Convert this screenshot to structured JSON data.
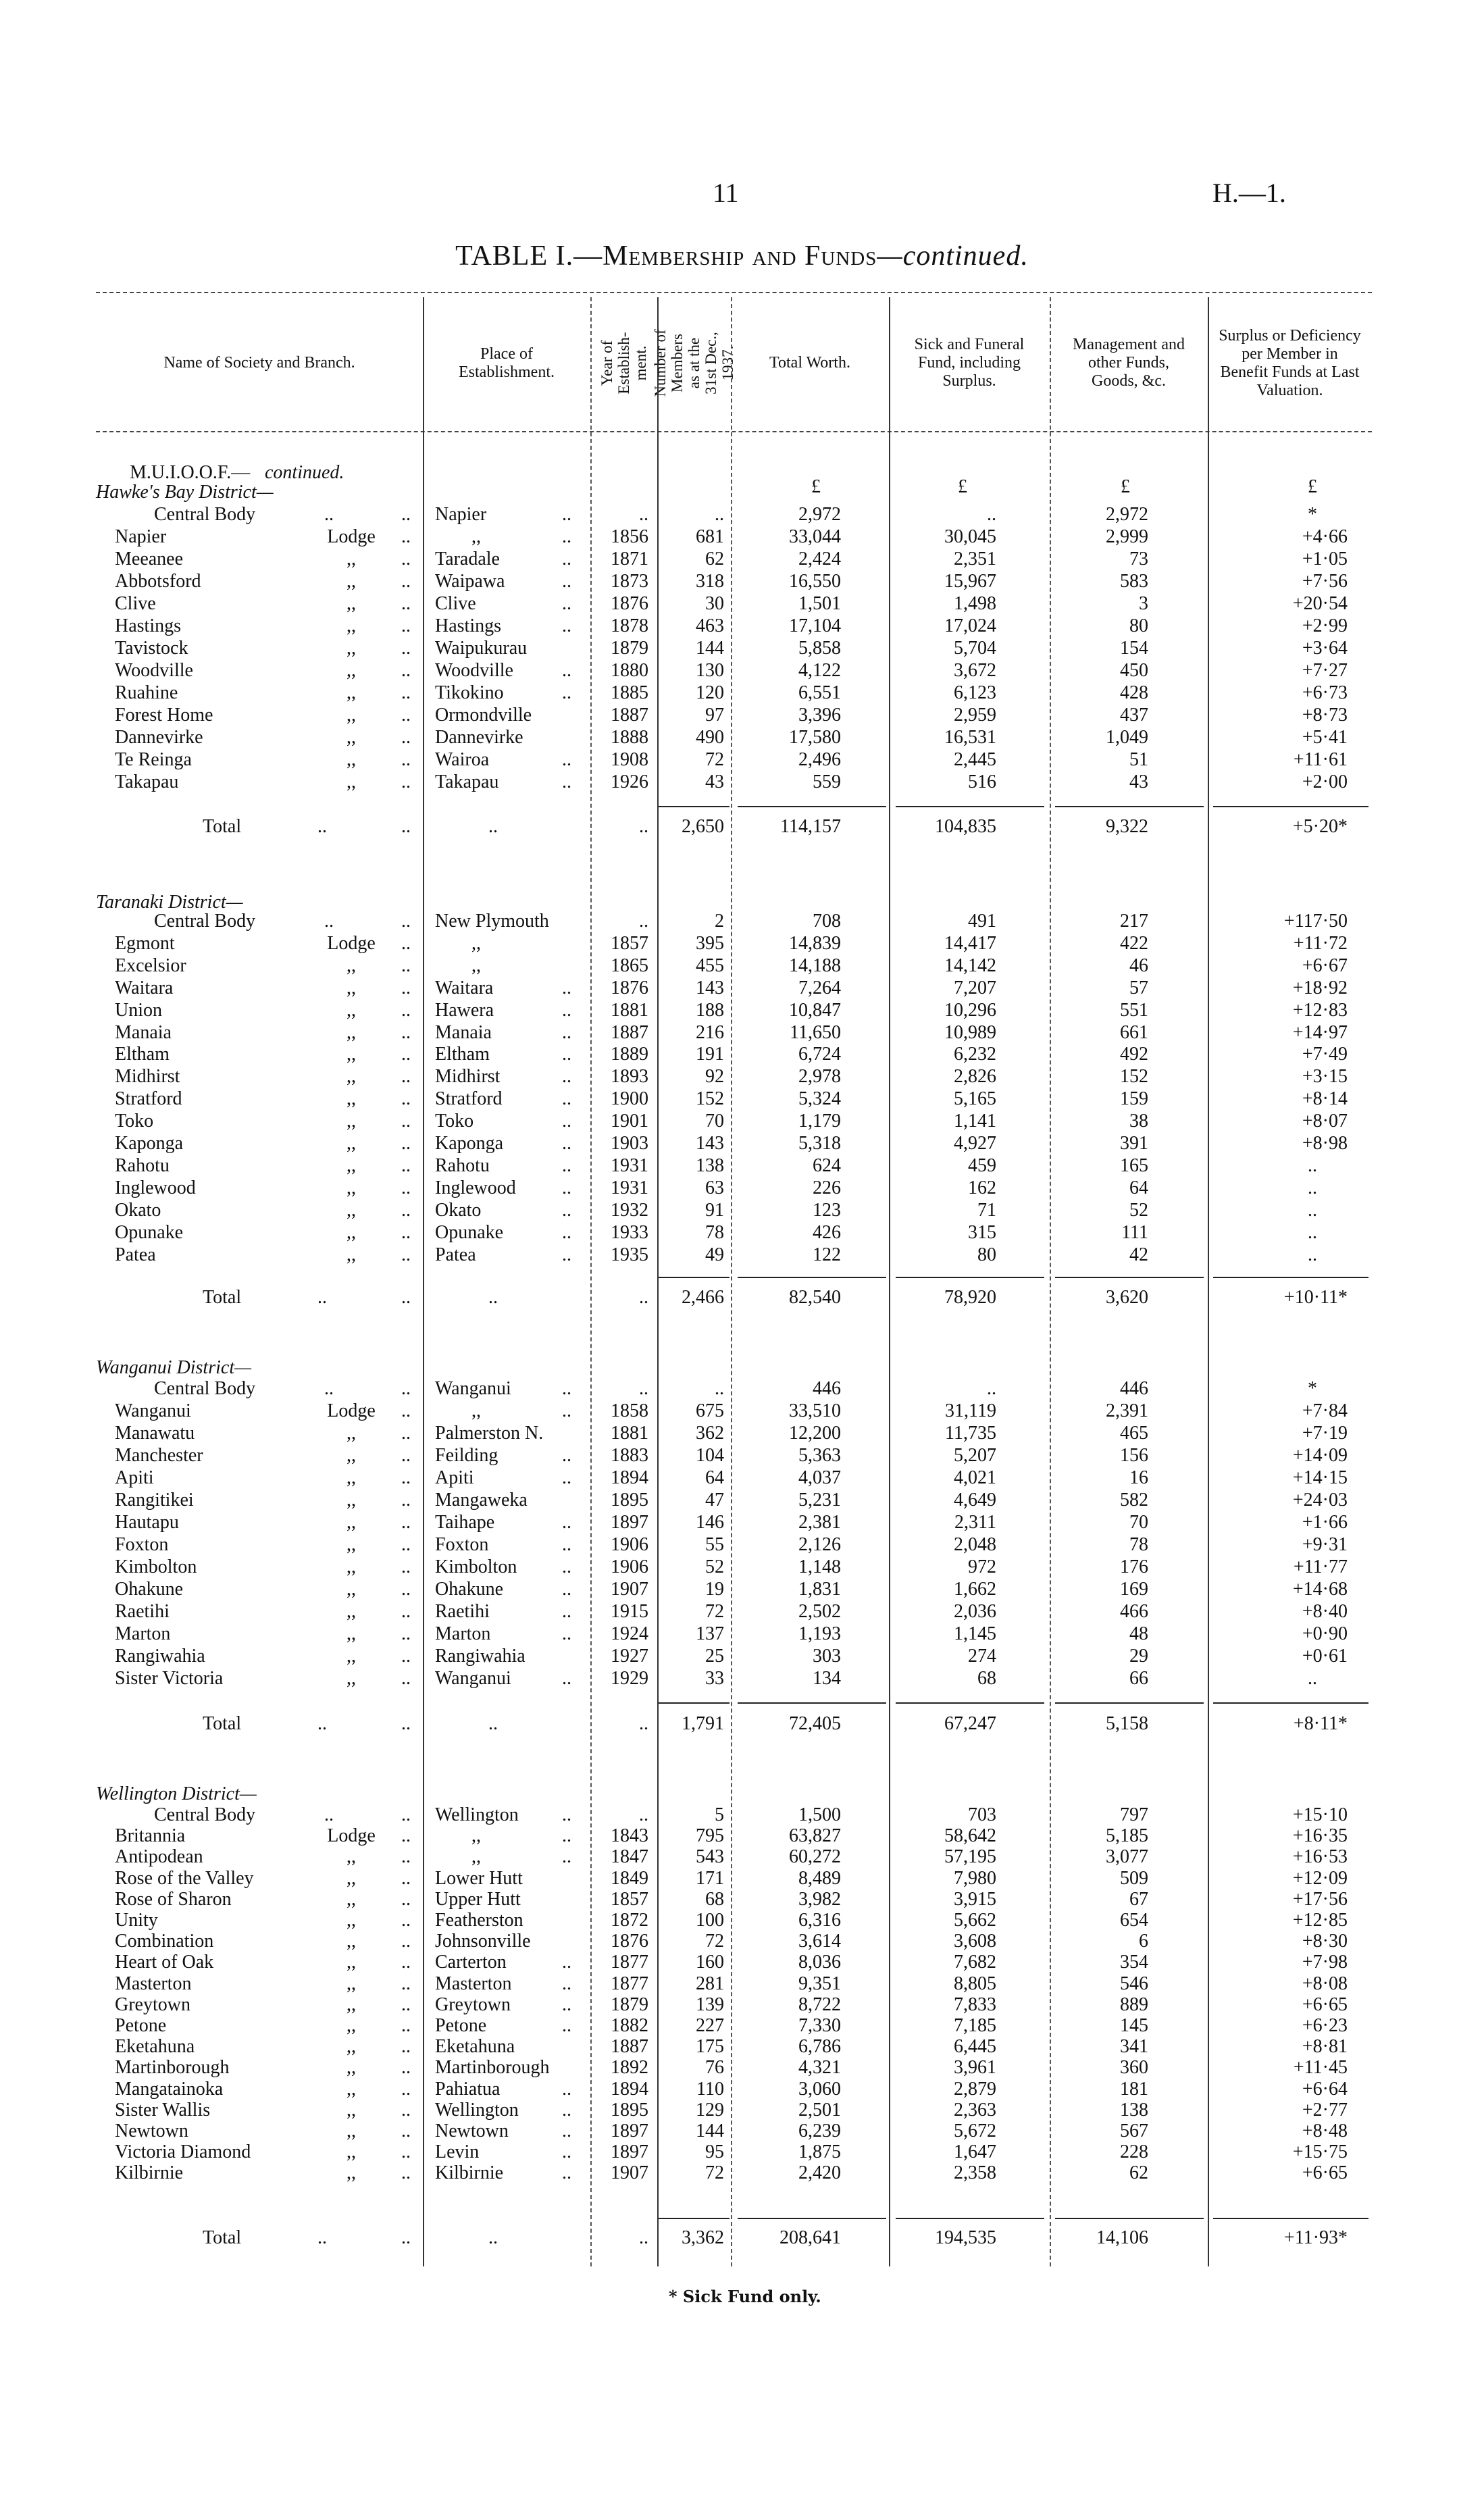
{
  "page_number": "11",
  "document_ref": "H.—1.",
  "title": {
    "main": "TABLE I.—",
    "caps": "Membership and Funds",
    "cont": "—continued."
  },
  "leader": "..",
  "columns": {
    "name": "Name of Society and Branch.",
    "place": "Place of Establishment.",
    "year": "Year of Establish-ment.",
    "members": "Number of Members as at the 31st Dec., 1937.",
    "worth": "Total Worth.",
    "sick": "Sick and Funeral Fund, including Surplus.",
    "mgmt": "Management and other Funds, Goods, &c.",
    "surplus": "Surplus or Deficiency per Member in Benefit Funds at Last Valuation."
  },
  "society_heading": "M.U.I.O.O.F.—",
  "society_heading_cont": "continued.",
  "currency_row": {
    "worth": "£",
    "sick": "£",
    "mgmt": "£",
    "surplus": "£"
  },
  "total_label": "Total",
  "footnote": "* Sick Fund only.",
  "sections": [
    {
      "heading": "Hawke's Bay District—",
      "rows": [
        [
          "Central Body",
          "..",
          "Napier",
          "..",
          "..",
          "..",
          "2,972",
          "..",
          "2,972",
          "*"
        ],
        [
          "Napier",
          "Lodge",
          ",,",
          "..",
          "1856",
          "681",
          "33,044",
          "30,045",
          "2,999",
          "+4·66"
        ],
        [
          "Meeanee",
          ",,",
          "Taradale",
          "..",
          "1871",
          "62",
          "2,424",
          "2,351",
          "73",
          "+1·05"
        ],
        [
          "Abbotsford",
          ",,",
          "Waipawa",
          "..",
          "1873",
          "318",
          "16,550",
          "15,967",
          "583",
          "+7·56"
        ],
        [
          "Clive",
          ",,",
          "Clive",
          "..",
          "1876",
          "30",
          "1,501",
          "1,498",
          "3",
          "+20·54"
        ],
        [
          "Hastings",
          ",,",
          "Hastings",
          "..",
          "1878",
          "463",
          "17,104",
          "17,024",
          "80",
          "+2·99"
        ],
        [
          "Tavistock",
          ",,",
          "Waipukurau",
          "",
          "1879",
          "144",
          "5,858",
          "5,704",
          "154",
          "+3·64"
        ],
        [
          "Woodville",
          ",,",
          "Woodville",
          "..",
          "1880",
          "130",
          "4,122",
          "3,672",
          "450",
          "+7·27"
        ],
        [
          "Ruahine",
          ",,",
          "Tikokino",
          "..",
          "1885",
          "120",
          "6,551",
          "6,123",
          "428",
          "+6·73"
        ],
        [
          "Forest Home",
          ",,",
          "Ormondville",
          "",
          "1887",
          "97",
          "3,396",
          "2,959",
          "437",
          "+8·73"
        ],
        [
          "Dannevirke",
          ",,",
          "Dannevirke",
          "",
          "1888",
          "490",
          "17,580",
          "16,531",
          "1,049",
          "+5·41"
        ],
        [
          "Te Reinga",
          ",,",
          "Wairoa",
          "..",
          "1908",
          "72",
          "2,496",
          "2,445",
          "51",
          "+11·61"
        ],
        [
          "Takapau",
          ",,",
          "Takapau",
          "..",
          "1926",
          "43",
          "559",
          "516",
          "43",
          "+2·00"
        ]
      ],
      "total": {
        "place": "..",
        "year": "..",
        "members": "2,650",
        "worth": "114,157",
        "sick": "104,835",
        "mgmt": "9,322",
        "surplus": "+5·20*"
      }
    },
    {
      "heading": "Taranaki District—",
      "rows": [
        [
          "Central Body",
          "..",
          "New Plymouth",
          "",
          "..",
          "2",
          "708",
          "491",
          "217",
          "+117·50"
        ],
        [
          "Egmont",
          "Lodge",
          ",,",
          "",
          "1857",
          "395",
          "14,839",
          "14,417",
          "422",
          "+11·72"
        ],
        [
          "Excelsior",
          ",,",
          ",,",
          "",
          "1865",
          "455",
          "14,188",
          "14,142",
          "46",
          "+6·67"
        ],
        [
          "Waitara",
          ",,",
          "Waitara",
          "..",
          "1876",
          "143",
          "7,264",
          "7,207",
          "57",
          "+18·92"
        ],
        [
          "Union",
          ",,",
          "Hawera",
          "..",
          "1881",
          "188",
          "10,847",
          "10,296",
          "551",
          "+12·83"
        ],
        [
          "Manaia",
          ",,",
          "Manaia",
          "..",
          "1887",
          "216",
          "11,650",
          "10,989",
          "661",
          "+14·97"
        ],
        [
          "Eltham",
          ",,",
          "Eltham",
          "..",
          "1889",
          "191",
          "6,724",
          "6,232",
          "492",
          "+7·49"
        ],
        [
          "Midhirst",
          ",,",
          "Midhirst",
          "..",
          "1893",
          "92",
          "2,978",
          "2,826",
          "152",
          "+3·15"
        ],
        [
          "Stratford",
          ",,",
          "Stratford",
          "..",
          "1900",
          "152",
          "5,324",
          "5,165",
          "159",
          "+8·14"
        ],
        [
          "Toko",
          ",,",
          "Toko",
          "..",
          "1901",
          "70",
          "1,179",
          "1,141",
          "38",
          "+8·07"
        ],
        [
          "Kaponga",
          ",,",
          "Kaponga",
          "..",
          "1903",
          "143",
          "5,318",
          "4,927",
          "391",
          "+8·98"
        ],
        [
          "Rahotu",
          ",,",
          "Rahotu",
          "..",
          "1931",
          "138",
          "624",
          "459",
          "165",
          ".."
        ],
        [
          "Inglewood",
          ",,",
          "Inglewood",
          "..",
          "1931",
          "63",
          "226",
          "162",
          "64",
          ".."
        ],
        [
          "Okato",
          ",,",
          "Okato",
          "..",
          "1932",
          "91",
          "123",
          "71",
          "52",
          ".."
        ],
        [
          "Opunake",
          ",,",
          "Opunake",
          "..",
          "1933",
          "78",
          "426",
          "315",
          "111",
          ".."
        ],
        [
          "Patea",
          ",,",
          "Patea",
          "..",
          "1935",
          "49",
          "122",
          "80",
          "42",
          ".."
        ]
      ],
      "total": {
        "place": "..",
        "year": "..",
        "members": "2,466",
        "worth": "82,540",
        "sick": "78,920",
        "mgmt": "3,620",
        "surplus": "+10·11*"
      }
    },
    {
      "heading": "Wanganui District—",
      "rows": [
        [
          "Central Body",
          "..",
          "Wanganui",
          "..",
          "..",
          "..",
          "446",
          "..",
          "446",
          "*"
        ],
        [
          "Wanganui",
          "Lodge",
          ",,",
          "..",
          "1858",
          "675",
          "33,510",
          "31,119",
          "2,391",
          "+7·84"
        ],
        [
          "Manawatu",
          ",,",
          "Palmerston N.",
          "",
          "1881",
          "362",
          "12,200",
          "11,735",
          "465",
          "+7·19"
        ],
        [
          "Manchester",
          ",,",
          "Feilding",
          "..",
          "1883",
          "104",
          "5,363",
          "5,207",
          "156",
          "+14·09"
        ],
        [
          "Apiti",
          ",,",
          "Apiti",
          "..",
          "1894",
          "64",
          "4,037",
          "4,021",
          "16",
          "+14·15"
        ],
        [
          "Rangitikei",
          ",,",
          "Mangaweka",
          "",
          "1895",
          "47",
          "5,231",
          "4,649",
          "582",
          "+24·03"
        ],
        [
          "Hautapu",
          ",,",
          "Taihape",
          "..",
          "1897",
          "146",
          "2,381",
          "2,311",
          "70",
          "+1·66"
        ],
        [
          "Foxton",
          ",,",
          "Foxton",
          "..",
          "1906",
          "55",
          "2,126",
          "2,048",
          "78",
          "+9·31"
        ],
        [
          "Kimbolton",
          ",,",
          "Kimbolton",
          "..",
          "1906",
          "52",
          "1,148",
          "972",
          "176",
          "+11·77"
        ],
        [
          "Ohakune",
          ",,",
          "Ohakune",
          "..",
          "1907",
          "19",
          "1,831",
          "1,662",
          "169",
          "+14·68"
        ],
        [
          "Raetihi",
          ",,",
          "Raetihi",
          "..",
          "1915",
          "72",
          "2,502",
          "2,036",
          "466",
          "+8·40"
        ],
        [
          "Marton",
          ",,",
          "Marton",
          "..",
          "1924",
          "137",
          "1,193",
          "1,145",
          "48",
          "+0·90"
        ],
        [
          "Rangiwahia",
          ",,",
          "Rangiwahia",
          "",
          "1927",
          "25",
          "303",
          "274",
          "29",
          "+0·61"
        ],
        [
          "Sister Victoria",
          ",,",
          "Wanganui",
          "..",
          "1929",
          "33",
          "134",
          "68",
          "66",
          ".."
        ]
      ],
      "total": {
        "place": "..",
        "year": "..",
        "members": "1,791",
        "worth": "72,405",
        "sick": "67,247",
        "mgmt": "5,158",
        "surplus": "+8·11*"
      }
    },
    {
      "heading": "Wellington District—",
      "rows": [
        [
          "Central Body",
          "..",
          "Wellington",
          "..",
          "..",
          "5",
          "1,500",
          "703",
          "797",
          "+15·10"
        ],
        [
          "Britannia",
          "Lodge",
          ",,",
          "..",
          "1843",
          "795",
          "63,827",
          "58,642",
          "5,185",
          "+16·35"
        ],
        [
          "Antipodean",
          ",,",
          ",,",
          "..",
          "1847",
          "543",
          "60,272",
          "57,195",
          "3,077",
          "+16·53"
        ],
        [
          "Rose of the Valley",
          ",,",
          "Lower Hutt",
          "",
          "1849",
          "171",
          "8,489",
          "7,980",
          "509",
          "+12·09"
        ],
        [
          "Rose of Sharon",
          ",,",
          "Upper Hutt",
          "",
          "1857",
          "68",
          "3,982",
          "3,915",
          "67",
          "+17·56"
        ],
        [
          "Unity",
          ",,",
          "Featherston",
          "",
          "1872",
          "100",
          "6,316",
          "5,662",
          "654",
          "+12·85"
        ],
        [
          "Combination",
          ",,",
          "Johnsonville",
          "",
          "1876",
          "72",
          "3,614",
          "3,608",
          "6",
          "+8·30"
        ],
        [
          "Heart of Oak",
          ",,",
          "Carterton",
          "..",
          "1877",
          "160",
          "8,036",
          "7,682",
          "354",
          "+7·98"
        ],
        [
          "Masterton",
          ",,",
          "Masterton",
          "..",
          "1877",
          "281",
          "9,351",
          "8,805",
          "546",
          "+8·08"
        ],
        [
          "Greytown",
          ",,",
          "Greytown",
          "..",
          "1879",
          "139",
          "8,722",
          "7,833",
          "889",
          "+6·65"
        ],
        [
          "Petone",
          ",,",
          "Petone",
          "..",
          "1882",
          "227",
          "7,330",
          "7,185",
          "145",
          "+6·23"
        ],
        [
          "Eketahuna",
          ",,",
          "Eketahuna",
          "",
          "1887",
          "175",
          "6,786",
          "6,445",
          "341",
          "+8·81"
        ],
        [
          "Martinborough",
          ",,",
          "Martinborough",
          "",
          "1892",
          "76",
          "4,321",
          "3,961",
          "360",
          "+11·45"
        ],
        [
          "Mangatainoka",
          ",,",
          "Pahiatua",
          "..",
          "1894",
          "110",
          "3,060",
          "2,879",
          "181",
          "+6·64"
        ],
        [
          "Sister Wallis",
          ",,",
          "Wellington",
          "..",
          "1895",
          "129",
          "2,501",
          "2,363",
          "138",
          "+2·77"
        ],
        [
          "Newtown",
          ",,",
          "Newtown",
          "..",
          "1897",
          "144",
          "6,239",
          "5,672",
          "567",
          "+8·48"
        ],
        [
          "Victoria Diamond",
          ",,",
          "Levin",
          "..",
          "1897",
          "95",
          "1,875",
          "1,647",
          "228",
          "+15·75"
        ],
        [
          "Kilbirnie",
          ",,",
          "Kilbirnie",
          "..",
          "1907",
          "72",
          "2,420",
          "2,358",
          "62",
          "+6·65"
        ]
      ],
      "total": {
        "place": "..",
        "year": "..",
        "members": "3,362",
        "worth": "208,641",
        "sick": "194,535",
        "mgmt": "14,106",
        "surplus": "+11·93*"
      }
    }
  ]
}
